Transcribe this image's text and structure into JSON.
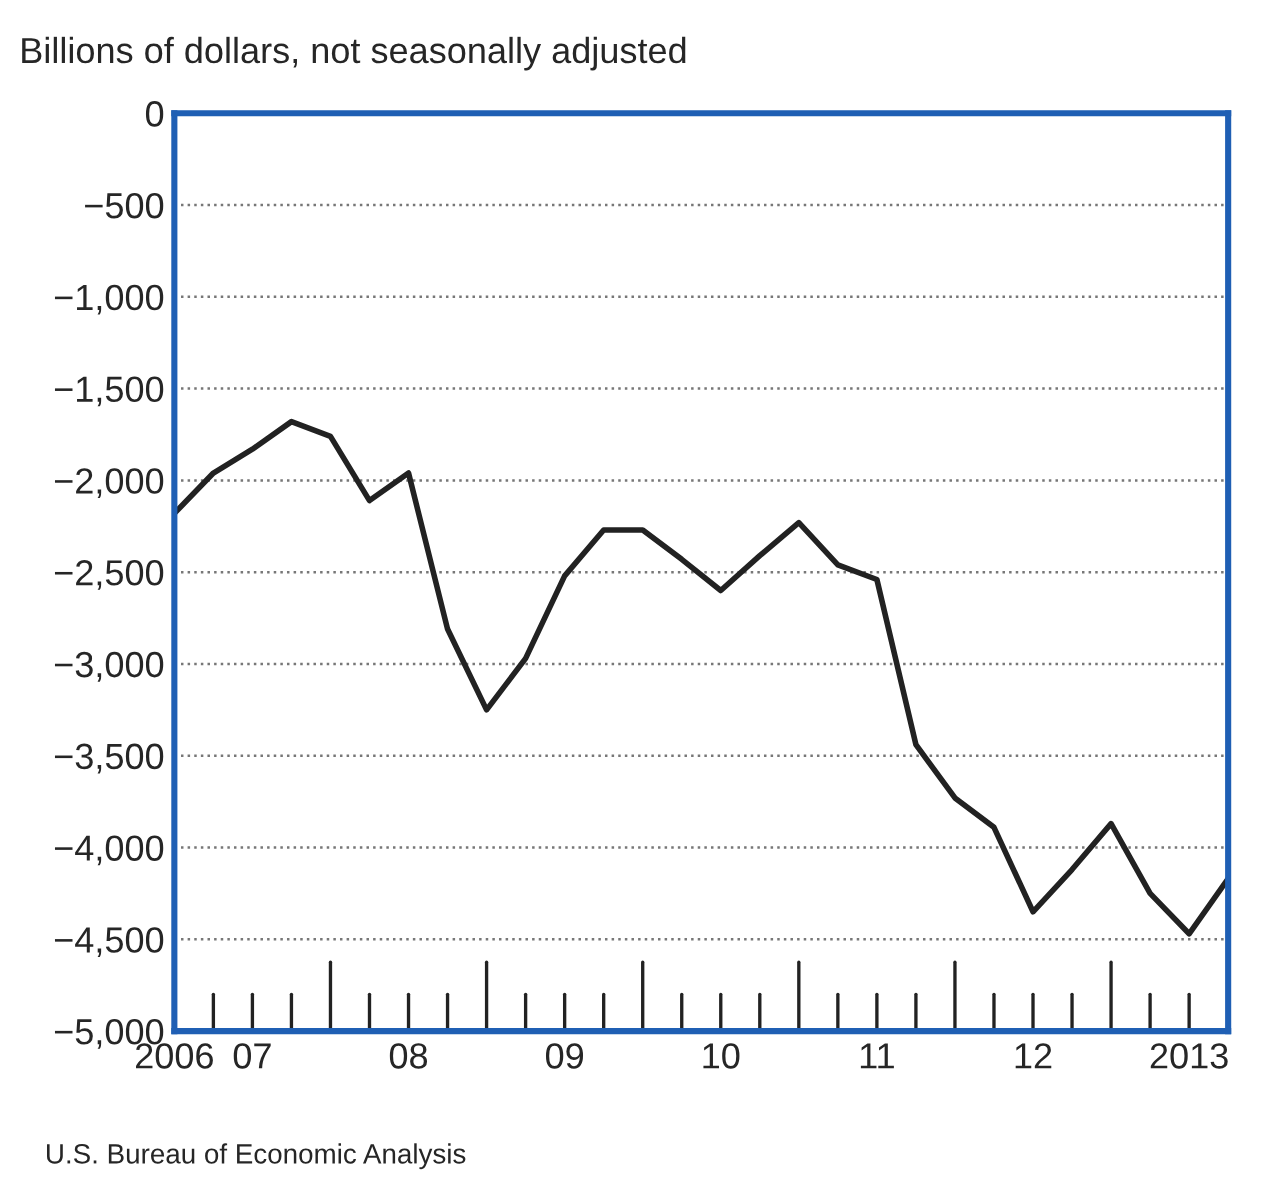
{
  "chart_data": {
    "type": "line",
    "title": "Billions of dollars, not seasonally adjusted",
    "annotations": [
      "U.S. Bureau of Economic Analysis"
    ],
    "categories": [
      "2006",
      null,
      "07",
      null,
      null,
      null,
      "08",
      null,
      null,
      null,
      "09",
      null,
      null,
      null,
      "10",
      null,
      null,
      null,
      "11",
      null,
      null,
      null,
      "12",
      null,
      null,
      null,
      "2013",
      null
    ],
    "series": [
      {
        "color": "#222222",
        "values": [
          -2180,
          -1960,
          -1830,
          -1680,
          -1760,
          -2110,
          -1960,
          -2810,
          -3250,
          -2970,
          -2520,
          -2270,
          -2270,
          -2430,
          -2600,
          -2410,
          -2230,
          -2460,
          -2540,
          -3440,
          -3730,
          -3890,
          -4350,
          -4120,
          -3870,
          -4250,
          -4470,
          -4170
        ]
      }
    ],
    "ylim": [
      -5000,
      0
    ],
    "yticks": [
      0,
      {
        "value": -500,
        "label": "−500"
      },
      {
        "value": -1000,
        "label": "−1,000"
      },
      {
        "value": -1500,
        "label": "−1,500"
      },
      {
        "value": -2000,
        "label": "−2,000"
      },
      {
        "value": -2500,
        "label": "−2,500"
      },
      {
        "value": -3000,
        "label": "−3,000"
      },
      {
        "value": -3500,
        "label": "−3,500"
      },
      {
        "value": -4000,
        "label": "−4,000"
      },
      {
        "value": -4500,
        "label": "−4,500"
      },
      {
        "value": -5000,
        "label": "−5,000"
      }
    ],
    "grid": "y",
    "line_style": "solid"
  }
}
